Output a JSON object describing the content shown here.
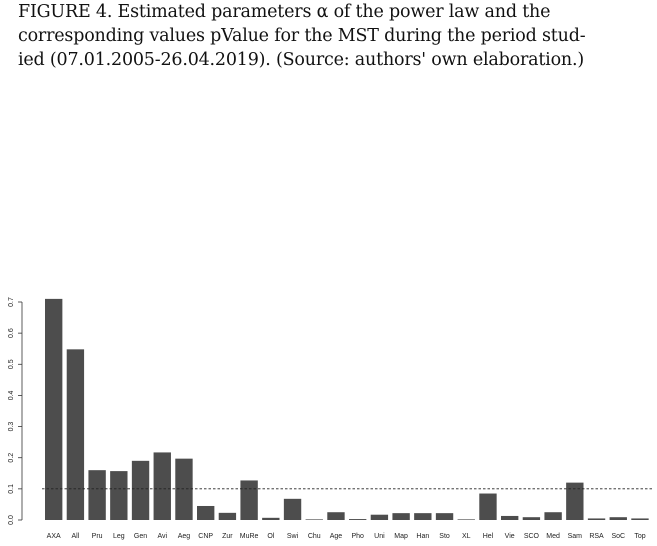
{
  "caption": "FIGURE 4. Estimated parameters α of the power law and the\ncorresponding values pValue for the MST during the period stud-\nied (07.01.2005-26.04.2019). (Source: authors' own elaboration.)",
  "chart_data": {
    "type": "bar",
    "title": "",
    "xlabel": "",
    "ylabel": "",
    "ylim": [
      0,
      0.7
    ],
    "yticks": [
      0.0,
      0.1,
      0.2,
      0.3,
      0.4,
      0.5,
      0.6,
      0.7
    ],
    "ytick_labels": [
      "0.0",
      "0.1",
      "0.2",
      "0.3",
      "0.4",
      "0.5",
      "0.6",
      "0.7"
    ],
    "categories": [
      "AXA",
      "All",
      "Pru",
      "Leg",
      "Gen",
      "Avi",
      "Aeg",
      "CNP",
      "Zur",
      "MuRe",
      "Ol",
      "Swi",
      "Chu",
      "Age",
      "Pho",
      "Uni",
      "Map",
      "Han",
      "Sto",
      "XL",
      "Hel",
      "Vie",
      "SCO",
      "Med",
      "Sam",
      "RSA",
      "SoC",
      "Top"
    ],
    "values": [
      0.71,
      0.548,
      0.16,
      0.157,
      0.19,
      0.217,
      0.197,
      0.045,
      0.023,
      0.127,
      0.007,
      0.068,
      0.002,
      0.025,
      0.003,
      0.017,
      0.022,
      0.022,
      0.022,
      0.002,
      0.085,
      0.013,
      0.009,
      0.025,
      0.12,
      0.005,
      0.009,
      0.005
    ],
    "reference_line": 0.1,
    "bar_color": "#4d4d4d",
    "grid": false
  }
}
